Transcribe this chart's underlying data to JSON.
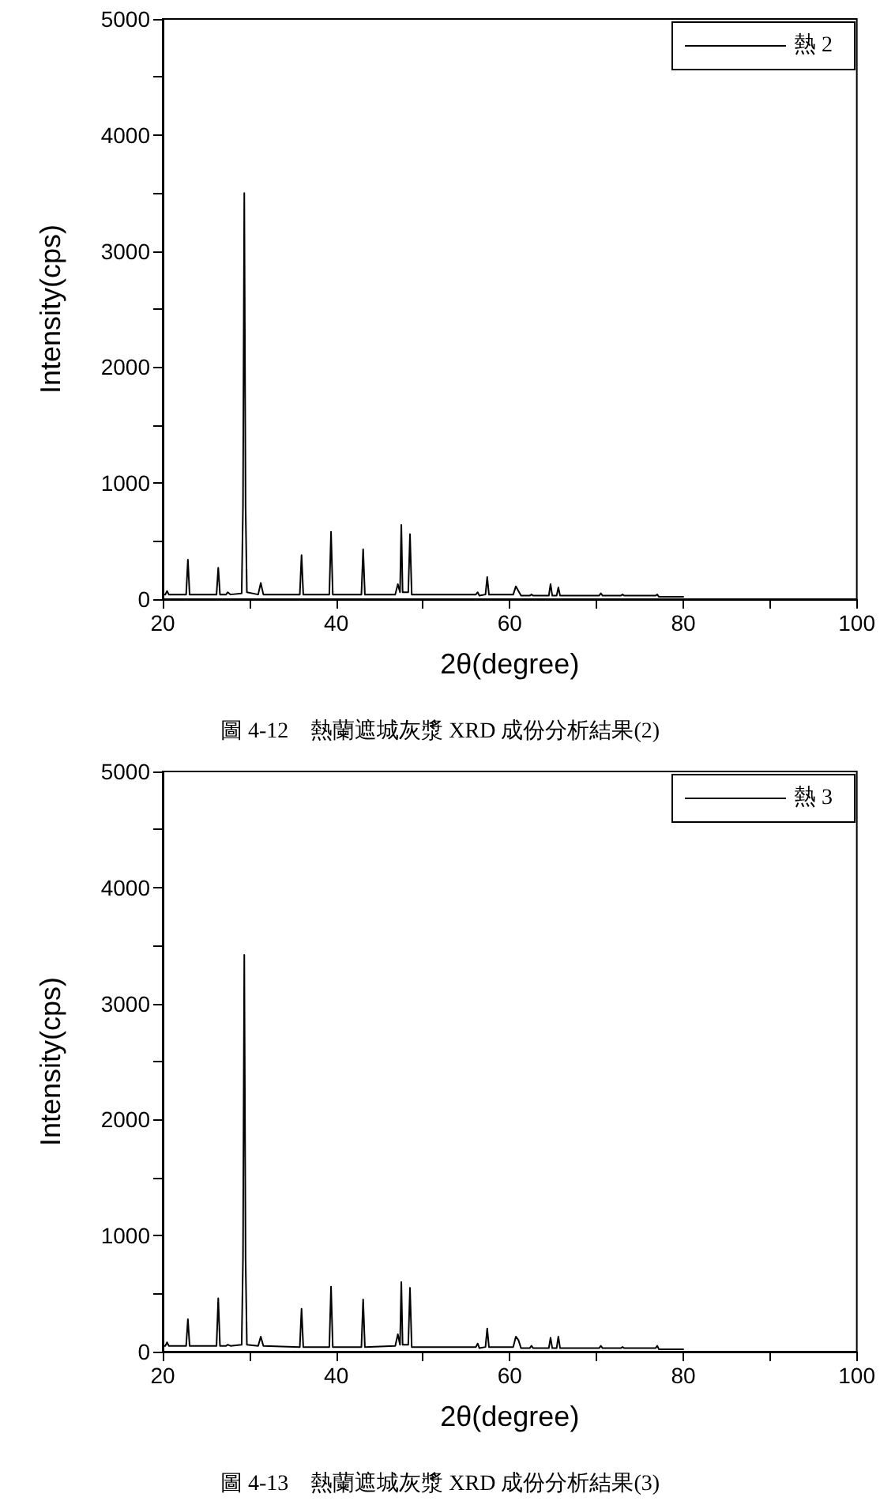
{
  "chart_data": [
    {
      "type": "line",
      "xlabel": "2θ(degree)",
      "ylabel": "Intensity(cps)",
      "annotations": [
        "圖 4-12　熱蘭遮城灰漿 XRD 成份分析結果(2)"
      ],
      "xlim": [
        20,
        100
      ],
      "ylim": [
        0,
        5000
      ],
      "xticks": [
        20,
        {
          "value": 30,
          "label": null
        },
        40,
        {
          "value": 50,
          "label": null
        },
        60,
        {
          "value": 70,
          "label": null
        },
        80,
        {
          "value": 90,
          "label": null
        },
        100
      ],
      "yticks": [
        0,
        {
          "value": 500,
          "label": null
        },
        1000,
        {
          "value": 1500,
          "label": null
        },
        2000,
        {
          "value": 2500,
          "label": null
        },
        3000,
        {
          "value": 3500,
          "label": null
        },
        4000,
        {
          "value": 4500,
          "label": null
        },
        5000
      ],
      "legend": "top right",
      "marker": "none",
      "line_style": "solid",
      "series": [
        {
          "name": "熱 2",
          "color": "#000000",
          "x": [
            20,
            20.3,
            20.5,
            20.7,
            22.7,
            22.9,
            23.1,
            26.2,
            26.4,
            26.6,
            27.3,
            27.5,
            27.8,
            29.1,
            29.25,
            29.4,
            29.55,
            29.7,
            31.0,
            31.3,
            31.6,
            35.8,
            36.0,
            36.2,
            39.2,
            39.4,
            39.6,
            42.9,
            43.1,
            43.3,
            46.8,
            47.1,
            47.35,
            47.5,
            47.65,
            48.3,
            48.5,
            48.7,
            49.4,
            49.6,
            56.1,
            56.3,
            56.5,
            57.2,
            57.4,
            57.6,
            60.4,
            60.7,
            61.0,
            61.3,
            62.3,
            62.5,
            62.7,
            64.5,
            64.7,
            64.9,
            65.4,
            65.6,
            65.8,
            70.3,
            70.5,
            70.7,
            72.8,
            73.0,
            73.2,
            76.8,
            77.0,
            77.2,
            80
          ],
          "values": [
            40,
            40,
            70,
            40,
            40,
            340,
            40,
            40,
            270,
            40,
            40,
            60,
            40,
            50,
            800,
            3500,
            800,
            60,
            40,
            140,
            40,
            40,
            380,
            40,
            40,
            580,
            40,
            40,
            430,
            40,
            40,
            130,
            60,
            640,
            60,
            60,
            560,
            40,
            40,
            40,
            40,
            60,
            30,
            40,
            190,
            40,
            40,
            110,
            70,
            30,
            30,
            40,
            30,
            30,
            130,
            30,
            30,
            100,
            30,
            30,
            50,
            30,
            30,
            40,
            30,
            30,
            40,
            20,
            20
          ]
        }
      ]
    },
    {
      "type": "line",
      "xlabel": "2θ(degree)",
      "ylabel": "Intensity(cps)",
      "annotations": [
        "圖 4-13　熱蘭遮城灰漿 XRD 成份分析結果(3)"
      ],
      "xlim": [
        20,
        100
      ],
      "ylim": [
        0,
        5000
      ],
      "xticks": [
        20,
        {
          "value": 30,
          "label": null
        },
        40,
        {
          "value": 50,
          "label": null
        },
        60,
        {
          "value": 70,
          "label": null
        },
        80,
        {
          "value": 90,
          "label": null
        },
        100
      ],
      "yticks": [
        0,
        {
          "value": 500,
          "label": null
        },
        1000,
        {
          "value": 1500,
          "label": null
        },
        2000,
        {
          "value": 2500,
          "label": null
        },
        3000,
        {
          "value": 3500,
          "label": null
        },
        4000,
        {
          "value": 4500,
          "label": null
        },
        5000
      ],
      "legend": "top right",
      "marker": "none",
      "line_style": "solid",
      "series": [
        {
          "name": "熱 3",
          "color": "#000000",
          "x": [
            20,
            20.3,
            20.5,
            20.7,
            22.7,
            22.9,
            23.1,
            26.2,
            26.4,
            26.6,
            27.3,
            27.5,
            27.8,
            29.1,
            29.25,
            29.4,
            29.55,
            29.7,
            31.0,
            31.3,
            31.6,
            35.8,
            36.0,
            36.2,
            39.2,
            39.4,
            39.6,
            42.9,
            43.1,
            43.3,
            46.8,
            47.1,
            47.35,
            47.5,
            47.65,
            48.3,
            48.5,
            48.7,
            49.4,
            49.6,
            56.1,
            56.3,
            56.5,
            57.2,
            57.4,
            57.6,
            60.4,
            60.7,
            61.0,
            61.3,
            62.3,
            62.5,
            62.7,
            64.5,
            64.7,
            64.9,
            65.4,
            65.6,
            65.8,
            70.3,
            70.5,
            70.7,
            72.8,
            73.0,
            73.2,
            76.8,
            77.0,
            77.2,
            80
          ],
          "values": [
            50,
            50,
            80,
            50,
            50,
            280,
            50,
            50,
            460,
            50,
            50,
            60,
            50,
            60,
            800,
            3420,
            800,
            60,
            50,
            130,
            50,
            40,
            370,
            40,
            40,
            560,
            40,
            40,
            450,
            40,
            50,
            150,
            60,
            600,
            60,
            60,
            550,
            40,
            40,
            40,
            40,
            70,
            30,
            40,
            200,
            40,
            40,
            130,
            100,
            30,
            30,
            50,
            30,
            30,
            120,
            30,
            30,
            130,
            30,
            30,
            50,
            30,
            30,
            40,
            30,
            30,
            50,
            20,
            20
          ]
        }
      ]
    }
  ]
}
